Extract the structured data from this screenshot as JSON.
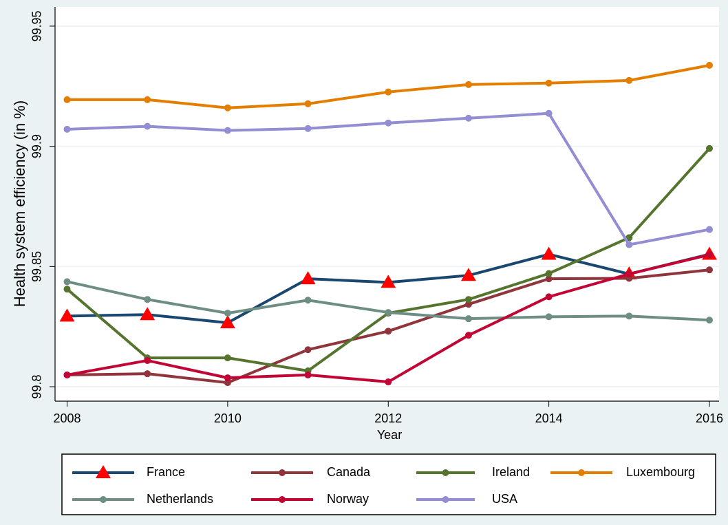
{
  "chart_data": {
    "type": "line",
    "y_label": "Health system efficiency (in %)",
    "x_label": "Year",
    "x": [
      2008,
      2009,
      2010,
      2011,
      2012,
      2013,
      2014,
      2015,
      2016
    ],
    "xlim": [
      2007.85,
      2016.12
    ],
    "xticks": [
      2008,
      2010,
      2012,
      2014,
      2016
    ],
    "ylim": [
      99.794,
      99.958
    ],
    "yticks": [
      99.8,
      99.85,
      99.9,
      99.95
    ],
    "grid": true,
    "legend": "bottom",
    "series": [
      {
        "name": "France",
        "color": "#1a476f",
        "marker": "triangle",
        "marker_color": "#ff0000",
        "values": [
          99.8294,
          99.83,
          99.8266,
          99.8449,
          99.8434,
          99.8463,
          99.8551,
          99.8469,
          99.8551
        ]
      },
      {
        "name": "Canada",
        "color": "#90353b",
        "marker": "circle",
        "values": [
          99.8049,
          99.8054,
          99.8017,
          99.8154,
          99.8231,
          99.8343,
          99.8449,
          99.8451,
          99.8486
        ]
      },
      {
        "name": "Ireland",
        "color": "#55752f",
        "marker": "circle",
        "values": [
          99.8406,
          99.812,
          99.812,
          99.8066,
          99.8306,
          99.8363,
          99.8471,
          99.862,
          99.8991
        ]
      },
      {
        "name": "Luxembourg",
        "color": "#e37e00",
        "marker": "circle",
        "values": [
          99.9194,
          99.9194,
          99.916,
          99.9177,
          99.9226,
          99.9257,
          99.9263,
          99.9274,
          99.9337
        ]
      },
      {
        "name": "Netherlands",
        "color": "#6e8e84",
        "marker": "circle",
        "values": [
          99.8437,
          99.8363,
          99.8306,
          99.836,
          99.8309,
          99.8283,
          99.8291,
          99.8294,
          99.8277
        ]
      },
      {
        "name": "Norway",
        "color": "#c10534",
        "marker": "circle",
        "values": [
          99.8049,
          99.8109,
          99.8037,
          99.8049,
          99.802,
          99.8214,
          99.8374,
          99.8469,
          99.8549
        ]
      },
      {
        "name": "USA",
        "color": "#938dd2",
        "marker": "circle",
        "values": [
          99.9071,
          99.9083,
          99.9066,
          99.9074,
          99.9097,
          99.9117,
          99.9137,
          99.8591,
          99.8654
        ]
      }
    ]
  }
}
